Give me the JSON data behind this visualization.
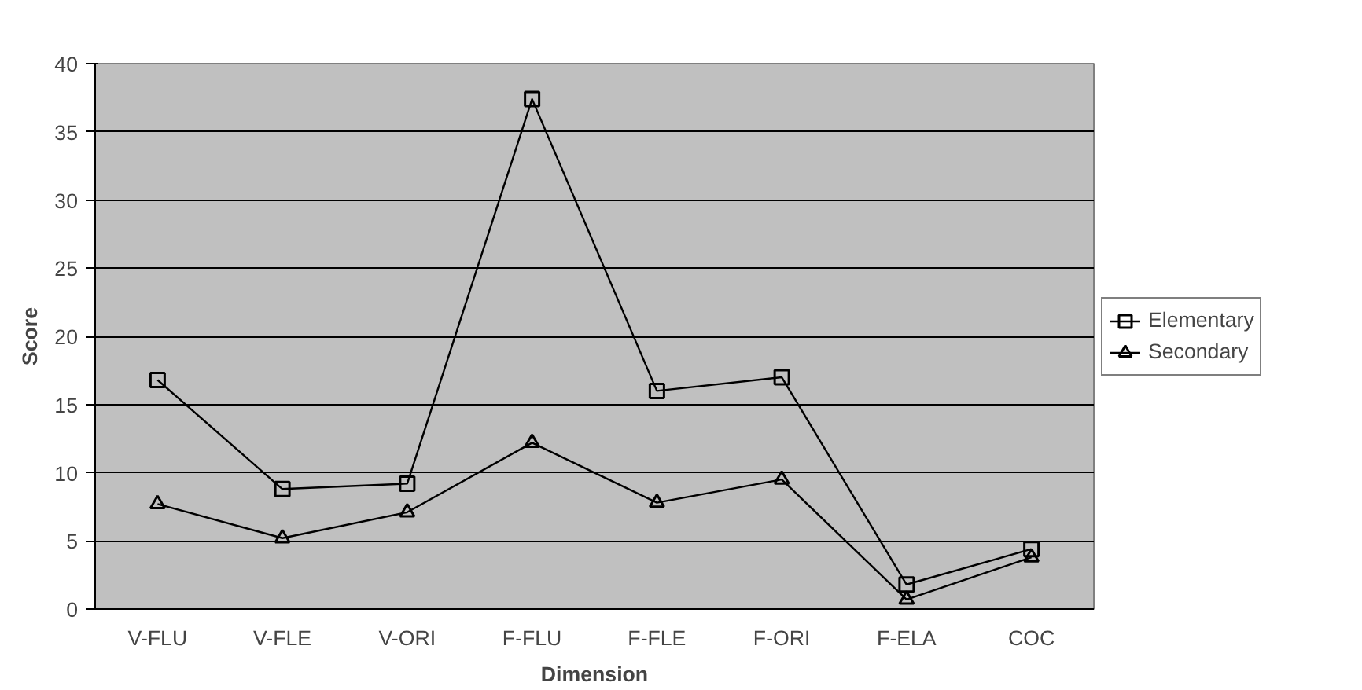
{
  "chart_data": {
    "type": "line",
    "xlabel": "Dimension",
    "ylabel": "Score",
    "categories": [
      "V-FLU",
      "V-FLE",
      "V-ORI",
      "F-FLU",
      "F-FLE",
      "F-ORI",
      "F-ELA",
      "COC"
    ],
    "series": [
      {
        "name": "Elementary",
        "color": "#000000",
        "marker": "square",
        "values": [
          16.8,
          8.8,
          9.2,
          37.4,
          16.0,
          17.0,
          1.8,
          4.4
        ]
      },
      {
        "name": "Secondary",
        "color": "#000000",
        "marker": "triangle",
        "values": [
          7.7,
          5.2,
          7.1,
          12.2,
          7.8,
          9.5,
          0.7,
          3.8
        ]
      }
    ],
    "ylim": [
      0,
      40
    ],
    "yticks": [
      0,
      5,
      10,
      15,
      20,
      25,
      30,
      35,
      40
    ],
    "grid": "y",
    "legend": "right",
    "line_style": "solid"
  }
}
